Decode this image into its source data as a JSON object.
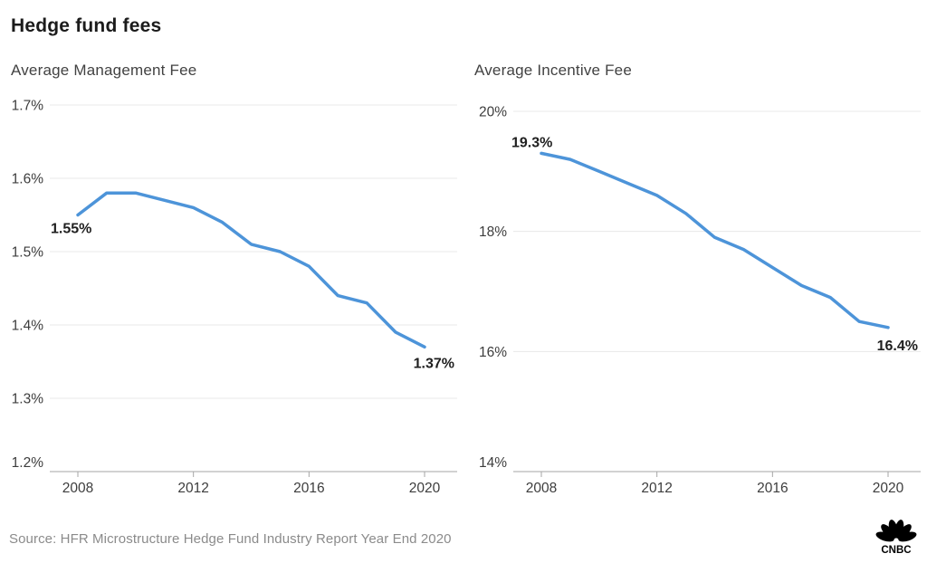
{
  "page": {
    "title": "Hedge fund fees",
    "source": "Source: HFR Microstructure Hedge Fund Industry Report Year End 2020",
    "logo_text": "CNBC"
  },
  "colors": {
    "line": "#4d94d9",
    "title": "#1b1b1b",
    "subtitle": "#424242",
    "axis_label": "#3d3d3d",
    "data_label": "#1f1f1f",
    "gridline": "#e8e8e8",
    "axis_line": "#a6a6a6",
    "source_text": "#8b8b8b",
    "logo": "#000000",
    "background": "#ffffff"
  },
  "chart_data": [
    {
      "type": "line",
      "title": "Average Management Fee",
      "x": [
        2008,
        2009,
        2010,
        2011,
        2012,
        2013,
        2014,
        2015,
        2016,
        2017,
        2018,
        2019,
        2020
      ],
      "values": [
        1.55,
        1.58,
        1.58,
        1.57,
        1.56,
        1.54,
        1.51,
        1.5,
        1.48,
        1.44,
        1.43,
        1.39,
        1.37
      ],
      "unit": "%",
      "ylim": [
        1.2,
        1.7
      ],
      "ytick_values": [
        1.7,
        1.6,
        1.5,
        1.4,
        1.3,
        1.2
      ],
      "ytick_labels": [
        "1.7%",
        "1.6%",
        "1.5%",
        "1.4%",
        "1.3%",
        "1.2%"
      ],
      "xtick_values": [
        2008,
        2012,
        2016,
        2020
      ],
      "xtick_labels": [
        "2008",
        "2012",
        "2016",
        "2020"
      ],
      "first_point_label": "1.55%",
      "last_point_label": "1.37%",
      "grid": true,
      "legend": "none"
    },
    {
      "type": "line",
      "title": "Average Incentive Fee",
      "x": [
        2008,
        2009,
        2010,
        2011,
        2012,
        2013,
        2014,
        2015,
        2016,
        2017,
        2018,
        2019,
        2020
      ],
      "values": [
        19.3,
        19.2,
        19.0,
        18.8,
        18.6,
        18.3,
        17.9,
        17.7,
        17.4,
        17.1,
        16.9,
        16.5,
        16.4
      ],
      "unit": "%",
      "ylim": [
        14,
        20
      ],
      "ytick_values": [
        20,
        18,
        16,
        14
      ],
      "ytick_labels": [
        "20%",
        "18%",
        "16%",
        "14%"
      ],
      "xtick_values": [
        2008,
        2012,
        2016,
        2020
      ],
      "xtick_labels": [
        "2008",
        "2012",
        "2016",
        "2020"
      ],
      "first_point_label": "19.3%",
      "last_point_label": "16.4%",
      "grid": true,
      "legend": "none"
    }
  ]
}
